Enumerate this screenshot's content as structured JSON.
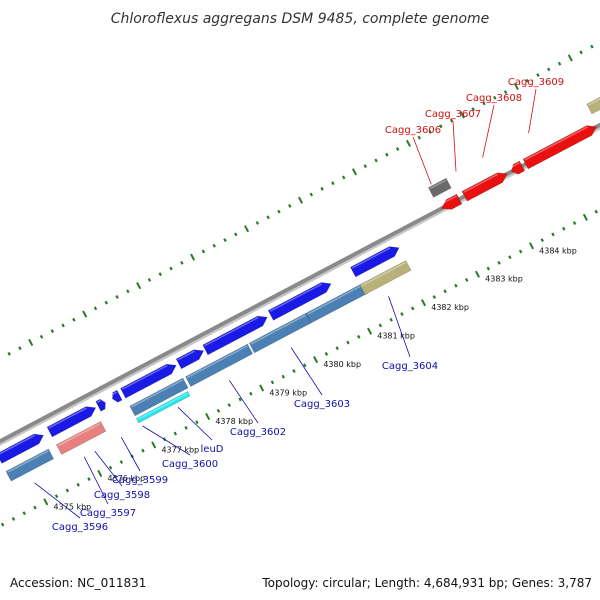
{
  "title": "Chloroflexus aggregans DSM 9485, complete genome",
  "footer": {
    "accession": "Accession: NC_011831",
    "topology": "Topology: circular; Length: 4,684,931 bp; Genes: 3,787"
  },
  "colors": {
    "backbone": "#8a8a8a",
    "tick": "#2a7a2a",
    "blue": "#1a1ae6",
    "steel": "#4a80b4",
    "red": "#e81010",
    "gray": "#6a6a6a",
    "khaki": "#b8b27a",
    "cyan": "#22e8ee",
    "salmon": "#e88080",
    "label_blue": "#1010aa",
    "label_red": "#d01010"
  },
  "kbp_ticks": [
    "4375 kbp",
    "4376 kbp",
    "4377 kbp",
    "4378 kbp",
    "4379 kbp",
    "4380 kbp",
    "4381 kbp",
    "4382 kbp",
    "4383 kbp",
    "4384 kbp"
  ],
  "gene_labels": [
    {
      "text": "Cagg_3596",
      "color": "blue"
    },
    {
      "text": "Cagg_3597",
      "color": "blue"
    },
    {
      "text": "Cagg_3598",
      "color": "blue"
    },
    {
      "text": "Cagg_3599",
      "color": "blue"
    },
    {
      "text": "Cagg_3600",
      "color": "blue"
    },
    {
      "text": "leuD",
      "color": "blue"
    },
    {
      "text": "Cagg_3602",
      "color": "blue"
    },
    {
      "text": "Cagg_3603",
      "color": "blue"
    },
    {
      "text": "Cagg_3604",
      "color": "blue"
    },
    {
      "text": "Cagg_3606",
      "color": "red"
    },
    {
      "text": "Cagg_3607",
      "color": "red"
    },
    {
      "text": "Cagg_3608",
      "color": "red"
    },
    {
      "text": "Cagg_3609",
      "color": "red"
    }
  ]
}
